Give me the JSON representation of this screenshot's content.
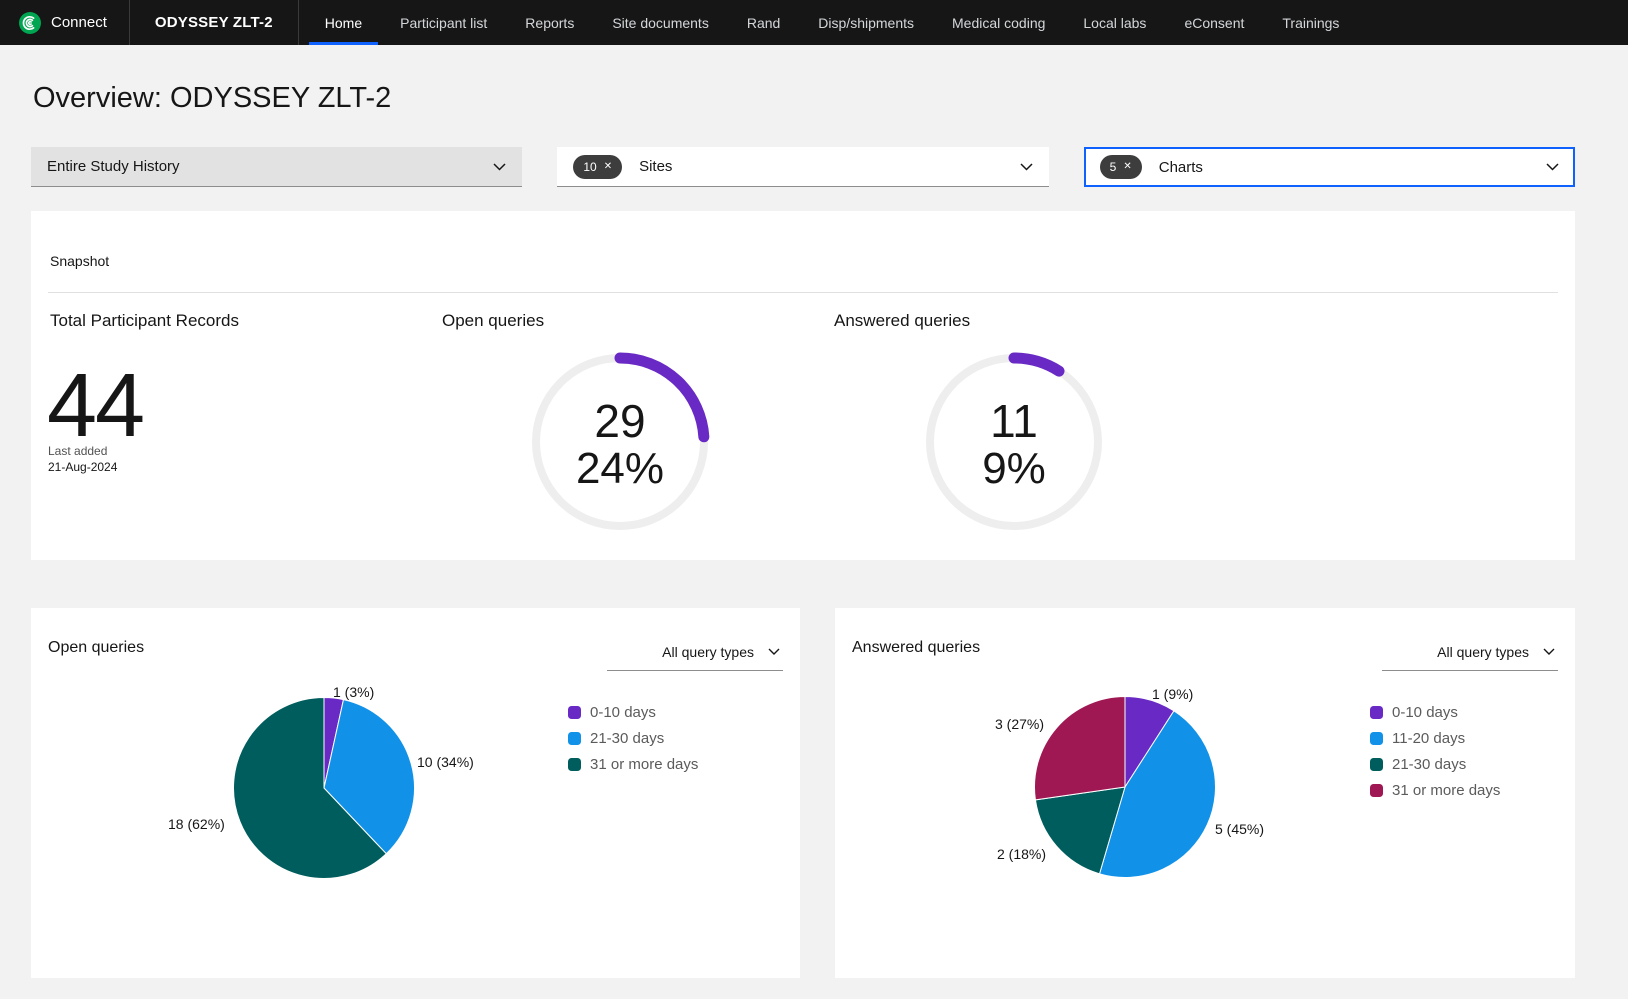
{
  "nav": {
    "brand": "Connect",
    "study": "ODYSSEY ZLT-2",
    "items": [
      {
        "label": "Home",
        "active": true
      },
      {
        "label": "Participant list"
      },
      {
        "label": "Reports"
      },
      {
        "label": "Site documents"
      },
      {
        "label": "Rand"
      },
      {
        "label": "Disp/shipments"
      },
      {
        "label": "Medical coding"
      },
      {
        "label": "Local labs"
      },
      {
        "label": "eConsent"
      },
      {
        "label": "Trainings"
      }
    ]
  },
  "page": {
    "title": "Overview: ODYSSEY ZLT-2"
  },
  "filters": {
    "clear_icon": "✕",
    "time_range": {
      "value": "Entire Study History"
    },
    "sites": {
      "count": "10",
      "label": "Sites"
    },
    "charts": {
      "count": "5",
      "label": "Charts"
    }
  },
  "snapshot": {
    "title": "Snapshot",
    "total_participants": {
      "heading": "Total Participant Records",
      "value": "44",
      "last_added_label": "Last added",
      "last_added_date": "21-Aug-2024"
    }
  },
  "colors": {
    "accent_blue": "#0f62fe",
    "nav_bg": "#161616",
    "brand_green": "#00a551",
    "page_bg": "#f2f2f2"
  },
  "chart_data": [
    {
      "id": "donut-open",
      "type": "donut",
      "title": "Open queries",
      "count": 29,
      "percent": 24,
      "count_label": "29",
      "percent_label": "24%",
      "arc_color": "#6929c4",
      "track_color": "#eeeeee"
    },
    {
      "id": "donut-answered",
      "type": "donut",
      "title": "Answered queries",
      "count": 11,
      "percent": 9,
      "count_label": "11",
      "percent_label": "9%",
      "arc_color": "#6929c4",
      "track_color": "#eeeeee"
    },
    {
      "id": "pie-open",
      "type": "pie",
      "title": "Open queries",
      "filter_label": "All query types",
      "legend_position": "right",
      "categories": [
        "0-10 days",
        "21-30 days",
        "31 or more days"
      ],
      "values": [
        1,
        10,
        18
      ],
      "pcts": [
        "3%",
        "34%",
        "62%"
      ],
      "data_labels": [
        "1 (3%)",
        "10 (34%)",
        "18 (62%)"
      ],
      "colors": [
        "#6929c4",
        "#1192e8",
        "#005d5d"
      ]
    },
    {
      "id": "pie-answered",
      "type": "pie",
      "title": "Answered queries",
      "filter_label": "All query types",
      "legend_position": "right",
      "categories": [
        "0-10 days",
        "11-20 days",
        "21-30 days",
        "31 or more days"
      ],
      "values": [
        1,
        5,
        2,
        3
      ],
      "pcts": [
        "9%",
        "45%",
        "18%",
        "27%"
      ],
      "data_labels": [
        "1 (9%)",
        "5 (45%)",
        "2 (18%)",
        "3 (27%)"
      ],
      "colors": [
        "#6929c4",
        "#1192e8",
        "#005d5d",
        "#9f1853"
      ]
    }
  ]
}
